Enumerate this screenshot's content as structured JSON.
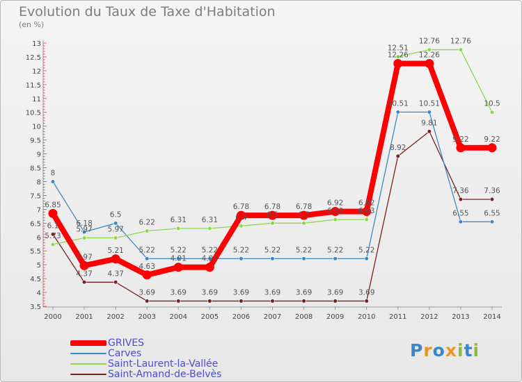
{
  "header": {
    "title": "Evolution du Taux de Taxe d'Habitation",
    "subtitle": "(en %)"
  },
  "logo": {
    "text": "Proxiti"
  },
  "chart_data": {
    "type": "line",
    "title": "Evolution du Taux de Taxe d'Habitation",
    "subtitle": "(en %)",
    "x": [
      "2000",
      "2001",
      "2002",
      "2003",
      "2004",
      "2005",
      "2006",
      "2007",
      "2008",
      "2009",
      "2010",
      "2011",
      "2012",
      "2013",
      "2014"
    ],
    "ylim": [
      3.5,
      13
    ],
    "yticks": [
      "3.5",
      "4",
      "4.5",
      "5",
      "5.5",
      "6",
      "6.5",
      "7",
      "7.5",
      "8",
      "8.5",
      "9",
      "9.5",
      "10",
      "10.5",
      "11",
      "11.5",
      "12",
      "12.5",
      "13"
    ],
    "grid": false,
    "legend": "bottom-left",
    "series": [
      {
        "name": "GRIVES",
        "color": "#ff0000",
        "values": [
          6.85,
          4.97,
          5.21,
          4.63,
          4.91,
          4.91,
          6.78,
          6.78,
          6.78,
          6.92,
          6.92,
          12.26,
          12.26,
          9.22,
          9.22
        ],
        "labels": [
          "6.85",
          "4.97",
          "5.21",
          "4.63",
          "4.91",
          "4.91",
          "6.78",
          "6.78",
          "6.78",
          "6.92",
          "6.92",
          "12.26",
          "12.26",
          "9.22",
          "9.22"
        ]
      },
      {
        "name": "Carves",
        "color": "#3b88c4",
        "values": [
          8,
          6.18,
          6.5,
          5.22,
          5.22,
          5.22,
          5.22,
          5.22,
          5.22,
          5.22,
          5.22,
          10.51,
          10.51,
          6.55,
          6.55
        ],
        "labels": [
          "8",
          "6.18",
          "6.5",
          "5.22",
          "5.22",
          "5.22",
          "5.22",
          "5.22",
          "5.22",
          "5.22",
          "5.22",
          "10.51",
          "10.51",
          "6.55",
          "6.55"
        ]
      },
      {
        "name": "Saint-Laurent-la-Vallée",
        "color": "#8ed64b",
        "values": [
          5.73,
          5.97,
          5.97,
          6.22,
          6.31,
          6.31,
          6.4,
          6.5,
          6.5,
          6.63,
          6.63,
          12.51,
          12.76,
          12.76,
          10.5
        ],
        "labels": [
          "5.73",
          "5.97",
          "5.97",
          "6.22",
          "6.31",
          "6.31",
          "6.4",
          "6.5",
          "6.5",
          "6.63",
          "6.63",
          "12.51",
          "12.76",
          "12.76",
          "10.5"
        ]
      },
      {
        "name": "Saint-Amand-de-Belvès",
        "color": "#7a1f1f",
        "values": [
          6.1,
          4.37,
          4.37,
          3.69,
          3.69,
          3.69,
          3.69,
          3.69,
          3.69,
          3.69,
          3.69,
          8.92,
          9.81,
          7.36,
          7.36
        ],
        "labels": [
          "6.1",
          "4.37",
          "4.37",
          "3.69",
          "3.69",
          "3.69",
          "3.69",
          "3.69",
          "3.69",
          "3.69",
          "3.69",
          "8.92",
          "9.81",
          "7.36",
          "7.36"
        ]
      }
    ]
  }
}
